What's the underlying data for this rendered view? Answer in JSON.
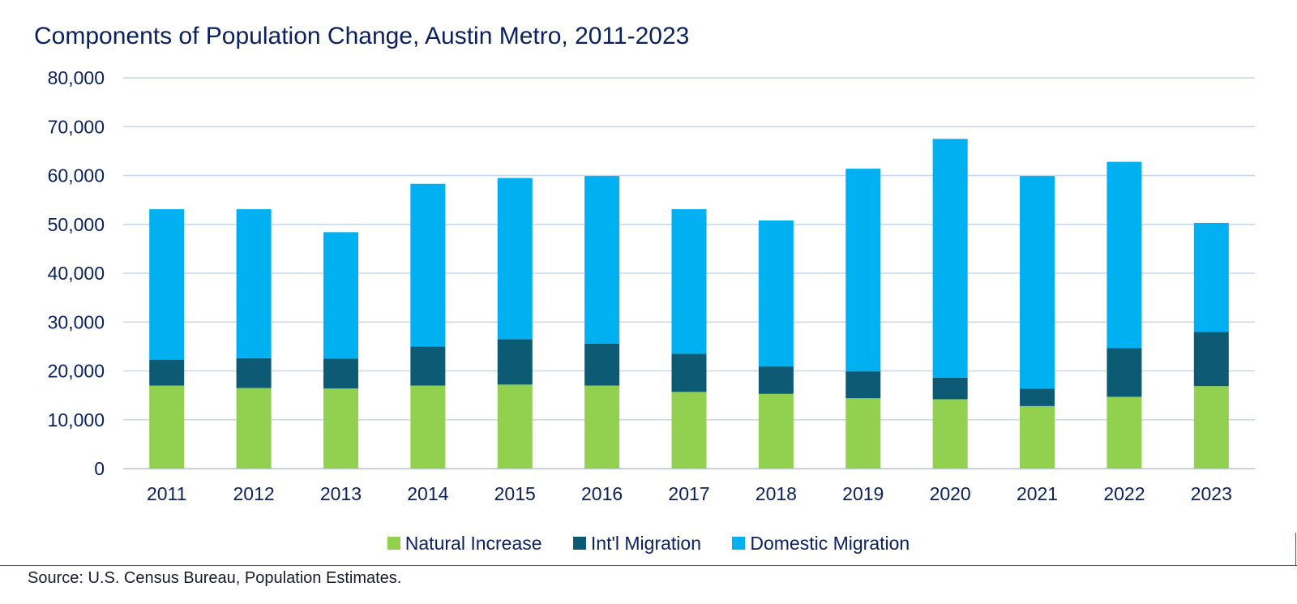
{
  "chart_data": {
    "type": "bar",
    "stacked": true,
    "title": "Components of Population Change, Austin Metro, 2011-2023",
    "xlabel": "",
    "ylabel": "",
    "ylim": [
      0,
      80000
    ],
    "yticks": [
      0,
      10000,
      20000,
      30000,
      40000,
      50000,
      60000,
      70000,
      80000
    ],
    "ytick_labels": [
      "0",
      "10,000",
      "20,000",
      "30,000",
      "40,000",
      "50,000",
      "60,000",
      "70,000",
      "80,000"
    ],
    "grid": true,
    "legend_position": "bottom",
    "categories": [
      "2011",
      "2012",
      "2013",
      "2014",
      "2015",
      "2016",
      "2017",
      "2018",
      "2019",
      "2020",
      "2021",
      "2022",
      "2023"
    ],
    "series": [
      {
        "name": "Natural Increase",
        "color": "#92d050",
        "values": [
          17000,
          16500,
          16400,
          17000,
          17200,
          17000,
          15700,
          15300,
          14400,
          14200,
          12800,
          14700,
          16900
        ]
      },
      {
        "name": "Int'l Migration",
        "color": "#0c5a74",
        "values": [
          5300,
          6100,
          6100,
          8000,
          9300,
          8600,
          7800,
          5600,
          5500,
          4400,
          3600,
          10000,
          11100
        ]
      },
      {
        "name": "Domestic Migration",
        "color": "#00b0f0",
        "values": [
          30800,
          30500,
          25900,
          33300,
          33000,
          34300,
          29600,
          29900,
          41500,
          48900,
          43500,
          38100,
          22300
        ]
      }
    ]
  },
  "source": "Source: U.S. Census Bureau, Population Estimates."
}
